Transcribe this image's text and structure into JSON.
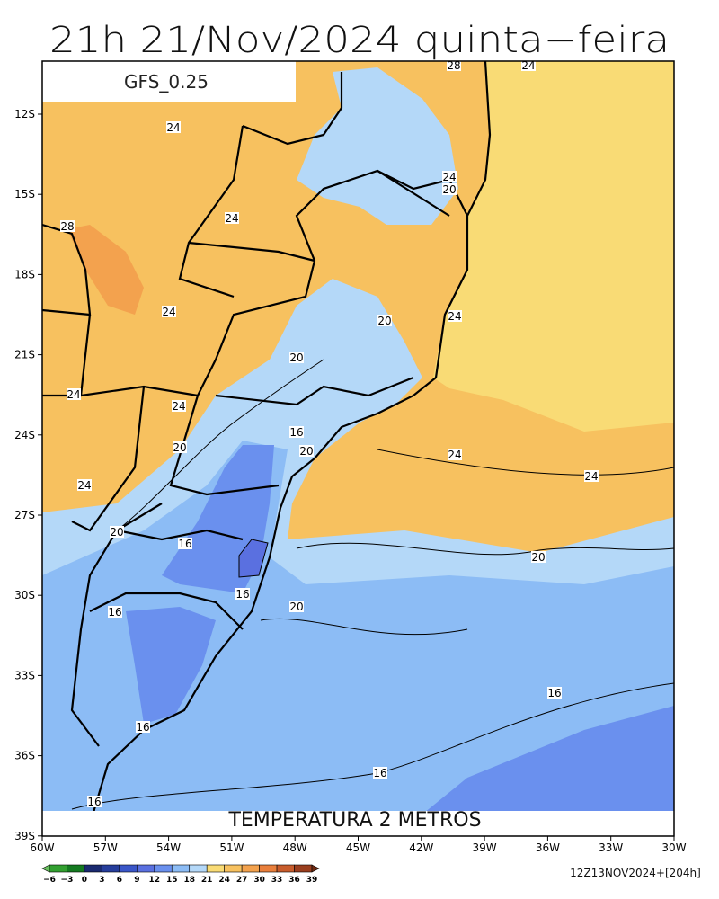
{
  "header": {
    "title": "21h 21/Nov/2024 quinta−feira",
    "model": "GFS_0.25"
  },
  "map": {
    "caption": "TEMPERATURA 2 METROS",
    "lat_labels": [
      "12S",
      "15S",
      "18S",
      "21S",
      "24S",
      "27S",
      "30S",
      "33S",
      "36S",
      "39S"
    ],
    "lon_labels": [
      "60W",
      "57W",
      "54W",
      "51W",
      "48W",
      "45W",
      "42W",
      "39W",
      "36W",
      "33W",
      "30W"
    ],
    "contour_labels": [
      "28",
      "24",
      "24",
      "24",
      "28",
      "24",
      "20",
      "24",
      "20",
      "24",
      "20",
      "24",
      "24",
      "16",
      "20",
      "20",
      "24",
      "24",
      "24",
      "20",
      "16",
      "20",
      "16",
      "20",
      "16",
      "16",
      "16",
      "16",
      "16"
    ]
  },
  "colorbar": {
    "labels": [
      "−6",
      "−3",
      "0",
      "3",
      "6",
      "9",
      "12",
      "15",
      "18",
      "21",
      "24",
      "27",
      "30",
      "33",
      "36",
      "39"
    ],
    "colors": [
      "#6ac060",
      "#32a030",
      "#147a20",
      "#1a2a70",
      "#263e9c",
      "#3a56c8",
      "#5a70e0",
      "#6a90ee",
      "#8cbcf5",
      "#b4d8f8",
      "#f9db75",
      "#f7c15f",
      "#f3a24e",
      "#e97f3c",
      "#c85c2c",
      "#9a3e1e",
      "#6e2a12"
    ]
  },
  "footer": {
    "run": "12Z13NOV2024+[204h]"
  }
}
